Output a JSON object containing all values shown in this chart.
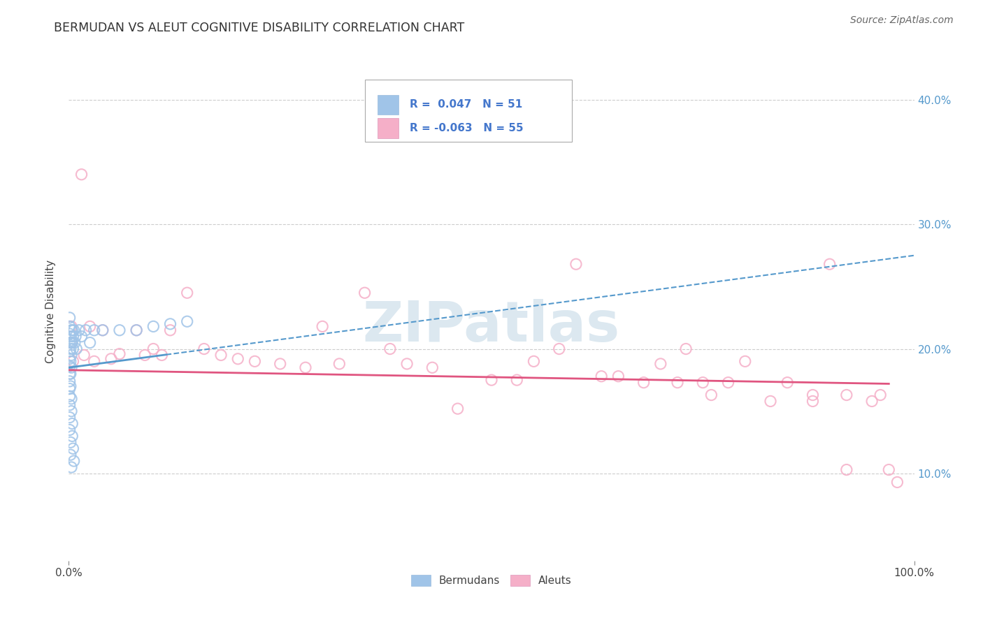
{
  "title": "BERMUDAN VS ALEUT COGNITIVE DISABILITY CORRELATION CHART",
  "source": "Source: ZipAtlas.com",
  "ylabel": "Cognitive Disability",
  "xlim": [
    0.0,
    1.0
  ],
  "ylim": [
    0.03,
    0.43
  ],
  "yticks": [
    0.1,
    0.2,
    0.3,
    0.4
  ],
  "ytick_labels": [
    "10.0%",
    "20.0%",
    "30.0%",
    "40.0%"
  ],
  "background_color": "#ffffff",
  "grid_color": "#c8c8c8",
  "blue_scatter_color": "#a0c4e8",
  "pink_scatter_color": "#f5afc8",
  "blue_line_color": "#5599cc",
  "pink_line_color": "#e05580",
  "watermark_color": "#dce8f0",
  "bermudan_x": [
    0.001,
    0.001,
    0.001,
    0.001,
    0.001,
    0.001,
    0.001,
    0.001,
    0.001,
    0.001,
    0.001,
    0.001,
    0.002,
    0.002,
    0.002,
    0.002,
    0.003,
    0.003,
    0.003,
    0.003,
    0.004,
    0.004,
    0.005,
    0.005,
    0.006,
    0.007,
    0.008,
    0.009,
    0.012,
    0.015,
    0.02,
    0.025,
    0.03,
    0.04,
    0.06,
    0.08,
    0.1,
    0.12,
    0.14,
    0.002,
    0.003,
    0.003,
    0.004,
    0.004,
    0.005,
    0.006,
    0.001,
    0.001,
    0.002,
    0.002,
    0.003
  ],
  "bermudan_y": [
    0.225,
    0.218,
    0.212,
    0.205,
    0.198,
    0.192,
    0.186,
    0.18,
    0.174,
    0.168,
    0.162,
    0.155,
    0.21,
    0.2,
    0.19,
    0.18,
    0.215,
    0.205,
    0.195,
    0.185,
    0.215,
    0.205,
    0.21,
    0.2,
    0.215,
    0.205,
    0.21,
    0.2,
    0.215,
    0.21,
    0.215,
    0.205,
    0.215,
    0.215,
    0.215,
    0.215,
    0.218,
    0.22,
    0.222,
    0.17,
    0.16,
    0.15,
    0.14,
    0.13,
    0.12,
    0.11,
    0.145,
    0.135,
    0.125,
    0.115,
    0.105
  ],
  "aleut_x": [
    0.003,
    0.003,
    0.005,
    0.015,
    0.018,
    0.025,
    0.03,
    0.04,
    0.05,
    0.06,
    0.08,
    0.09,
    0.1,
    0.11,
    0.12,
    0.14,
    0.16,
    0.18,
    0.2,
    0.22,
    0.25,
    0.28,
    0.3,
    0.32,
    0.35,
    0.38,
    0.4,
    0.43,
    0.46,
    0.5,
    0.53,
    0.55,
    0.58,
    0.6,
    0.63,
    0.65,
    0.68,
    0.7,
    0.73,
    0.75,
    0.78,
    0.8,
    0.83,
    0.85,
    0.88,
    0.9,
    0.92,
    0.95,
    0.97,
    0.98,
    0.72,
    0.76,
    0.88,
    0.92,
    0.96
  ],
  "aleut_y": [
    0.218,
    0.205,
    0.19,
    0.34,
    0.195,
    0.218,
    0.19,
    0.215,
    0.192,
    0.196,
    0.215,
    0.195,
    0.2,
    0.195,
    0.215,
    0.245,
    0.2,
    0.195,
    0.192,
    0.19,
    0.188,
    0.185,
    0.218,
    0.188,
    0.245,
    0.2,
    0.188,
    0.185,
    0.152,
    0.175,
    0.175,
    0.19,
    0.2,
    0.268,
    0.178,
    0.178,
    0.173,
    0.188,
    0.2,
    0.173,
    0.173,
    0.19,
    0.158,
    0.173,
    0.158,
    0.268,
    0.103,
    0.158,
    0.103,
    0.093,
    0.173,
    0.163,
    0.163,
    0.163,
    0.163
  ]
}
